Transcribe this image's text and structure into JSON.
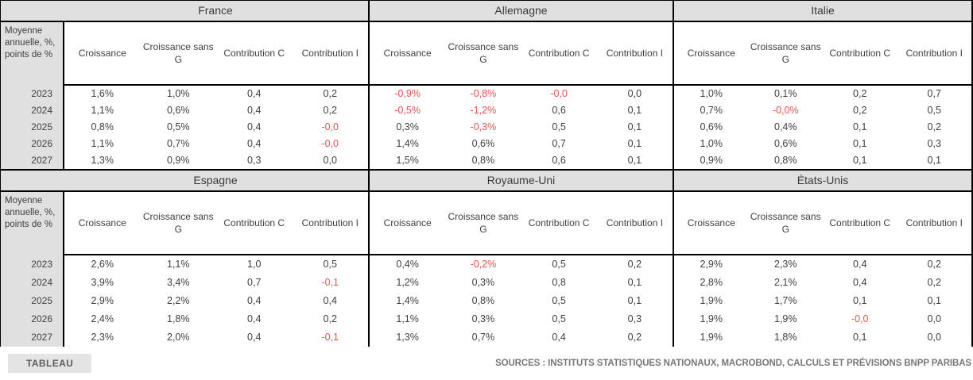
{
  "colors": {
    "negative_red": "#f0524f",
    "text": "#3f3f3e",
    "band_background": "#e0e0e0",
    "border": "#000000"
  },
  "chart_data": {
    "type": "table",
    "row_label_header": "Moyenne annuelle, %, points de %",
    "columns": [
      "Croissance",
      "Croissance sans G",
      "Contribution C",
      "Contribution I"
    ],
    "years": [
      "2023",
      "2024",
      "2025",
      "2026",
      "2027"
    ],
    "blocks": [
      {
        "countries": [
          {
            "name": "France",
            "rows": [
              [
                "1,6%",
                "1,0%",
                "0,4",
                "0,2"
              ],
              [
                "1,1%",
                "0,6%",
                "0,4",
                "0,2"
              ],
              [
                "0,8%",
                "0,5%",
                "0,4",
                "-0,0"
              ],
              [
                "1,1%",
                "0,7%",
                "0,4",
                "-0,0"
              ],
              [
                "1,3%",
                "0,9%",
                "0,3",
                "0,0"
              ]
            ]
          },
          {
            "name": "Allemagne",
            "rows": [
              [
                "-0,9%",
                "-0,8%",
                "-0,0",
                "0,0"
              ],
              [
                "-0,5%",
                "-1,2%",
                "0,6",
                "0,1"
              ],
              [
                "0,3%",
                "-0,3%",
                "0,5",
                "0,1"
              ],
              [
                "1,4%",
                "0,6%",
                "0,7",
                "0,1"
              ],
              [
                "1,5%",
                "0,8%",
                "0,6",
                "0,1"
              ]
            ]
          },
          {
            "name": "Italie",
            "rows": [
              [
                "1,0%",
                "0,1%",
                "0,2",
                "0,7"
              ],
              [
                "0,7%",
                "-0,0%",
                "0,2",
                "0,5"
              ],
              [
                "0,6%",
                "0,4%",
                "0,1",
                "0,2"
              ],
              [
                "1,0%",
                "0,6%",
                "0,1",
                "0,3"
              ],
              [
                "0,9%",
                "0,8%",
                "0,1",
                "0,1"
              ]
            ]
          }
        ]
      },
      {
        "countries": [
          {
            "name": "Espagne",
            "rows": [
              [
                "2,6%",
                "1,1%",
                "1,0",
                "0,5"
              ],
              [
                "3,9%",
                "3,4%",
                "0,7",
                "-0,1"
              ],
              [
                "2,9%",
                "2,2%",
                "0,4",
                "0,4"
              ],
              [
                "2,4%",
                "1,8%",
                "0,4",
                "0,2"
              ],
              [
                "2,3%",
                "2,0%",
                "0,4",
                "-0,1"
              ]
            ]
          },
          {
            "name": "Royaume-Uni",
            "rows": [
              [
                "0,4%",
                "-0,2%",
                "0,5",
                "0,2"
              ],
              [
                "1,2%",
                "0,3%",
                "0,8",
                "0,1"
              ],
              [
                "1,4%",
                "0,8%",
                "0,5",
                "0,1"
              ],
              [
                "1,1%",
                "0,3%",
                "0,5",
                "0,3"
              ],
              [
                "1,3%",
                "0,7%",
                "0,4",
                "0,2"
              ]
            ]
          },
          {
            "name": "États-Unis",
            "rows": [
              [
                "2,9%",
                "2,3%",
                "0,4",
                "0,2"
              ],
              [
                "2,8%",
                "2,1%",
                "0,4",
                "0,2"
              ],
              [
                "1,9%",
                "1,7%",
                "0,1",
                "0,1"
              ],
              [
                "1,9%",
                "1,9%",
                "-0,0",
                "0,0"
              ],
              [
                "1,9%",
                "1,8%",
                "0,1",
                "0,0"
              ]
            ]
          }
        ]
      }
    ]
  },
  "footer": {
    "badge": "TABLEAU",
    "sources": "SOURCES :  INSTITUTS STATISTIQUES NATIONAUX, MACROBOND, CALCULS ET PRÉVISIONS BNPP PARIBAS"
  }
}
